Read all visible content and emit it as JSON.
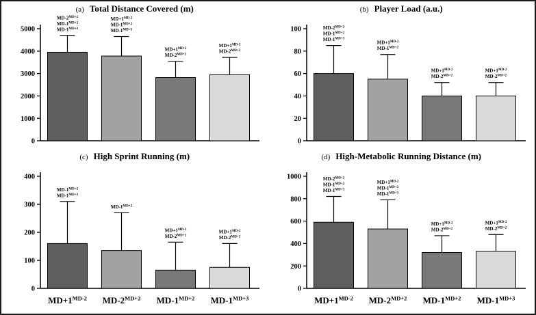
{
  "figure": {
    "background": "#ffffff",
    "border_color": "#1b1b1b",
    "axis_color": "#000000",
    "bar_colors": [
      "#5e5e5e",
      "#a2a2a2",
      "#787878",
      "#d9d9d9"
    ],
    "x_labels": [
      {
        "base": "MD+1",
        "sup": "MD-2"
      },
      {
        "base": "MD-2",
        "sup": "MD+2"
      },
      {
        "base": "MD-1",
        "sup": "MD+2"
      },
      {
        "base": "MD-1",
        "sup": "MD+3"
      }
    ]
  },
  "chart_data": [
    {
      "id": "a",
      "type": "bar",
      "panel_letter": "(a)",
      "title": "Total Distance Covered (m)",
      "categories": [
        "MD+1^MD-2",
        "MD-2^MD+2",
        "MD-1^MD+2",
        "MD-1^MD+3"
      ],
      "values": [
        3950,
        3780,
        2820,
        2950
      ],
      "error_tops": [
        4700,
        4650,
        3550,
        3720
      ],
      "ylim": [
        0,
        5000
      ],
      "yticks": [
        0,
        1000,
        2000,
        3000,
        4000,
        5000
      ],
      "show_x_labels": false,
      "annotations": [
        [
          {
            "base": "MD-2",
            "sup": "MD+2"
          },
          {
            "base": "MD-1",
            "sup": "MD+2"
          },
          {
            "base": "MD-1",
            "sup": "MD+3"
          }
        ],
        [
          {
            "base": "MD+1",
            "sup": "MD-2"
          },
          {
            "base": "MD-1",
            "sup": "MD+2"
          },
          {
            "base": "MD-1",
            "sup": "MD+3"
          }
        ],
        [
          {
            "base": "MD+1",
            "sup": "MD-2"
          },
          {
            "base": "MD-2",
            "sup": "MD+2"
          }
        ],
        [
          {
            "base": "MD+1",
            "sup": "MD-2"
          },
          {
            "base": "MD-2",
            "sup": "MD+2"
          }
        ]
      ]
    },
    {
      "id": "b",
      "type": "bar",
      "panel_letter": "(b)",
      "title": "Player Load (a.u.)",
      "categories": [
        "MD+1^MD-2",
        "MD-2^MD+2",
        "MD-1^MD+2",
        "MD-1^MD+3"
      ],
      "values": [
        60,
        55,
        40,
        40
      ],
      "error_tops": [
        85,
        77,
        52,
        52
      ],
      "ylim": [
        0,
        100
      ],
      "yticks": [
        0,
        20,
        40,
        60,
        80,
        100
      ],
      "show_x_labels": false,
      "annotations": [
        [
          {
            "base": "MD-2",
            "sup": "MD+2"
          },
          {
            "base": "MD-1",
            "sup": "MD+2"
          },
          {
            "base": "MD-1",
            "sup": "MD+3"
          }
        ],
        [
          {
            "base": "MD+1",
            "sup": "MD-2"
          },
          {
            "base": "MD-1",
            "sup": "MD+2"
          }
        ],
        [
          {
            "base": "MD+1",
            "sup": "MD-2"
          },
          {
            "base": "MD-2",
            "sup": "MD+2"
          }
        ],
        [
          {
            "base": "MD+1",
            "sup": "MD-2"
          },
          {
            "base": "MD-2",
            "sup": "MD+2"
          }
        ]
      ]
    },
    {
      "id": "c",
      "type": "bar",
      "panel_letter": "(c)",
      "title": "High Sprint Running (m)",
      "categories": [
        "MD+1^MD-2",
        "MD-2^MD+2",
        "MD-1^MD+2",
        "MD-1^MD+3"
      ],
      "values": [
        160,
        135,
        65,
        75
      ],
      "error_tops": [
        310,
        270,
        165,
        160
      ],
      "ylim": [
        0,
        400
      ],
      "yticks": [
        0,
        100,
        200,
        300,
        400
      ],
      "show_x_labels": true,
      "annotations": [
        [
          {
            "base": "MD-1",
            "sup": "MD+2"
          },
          {
            "base": "MD-1",
            "sup": "MD+3"
          }
        ],
        [
          {
            "base": "MD-1",
            "sup": "MD+2"
          }
        ],
        [
          {
            "base": "MD+1",
            "sup": "MD-2"
          },
          {
            "base": "MD-2",
            "sup": "MD+2"
          }
        ],
        [
          {
            "base": "MD+1",
            "sup": "MD-2"
          },
          {
            "base": "MD-2",
            "sup": "MD+2"
          }
        ]
      ]
    },
    {
      "id": "d",
      "type": "bar",
      "panel_letter": "(d)",
      "title": "High-Metabolic Running Distance (m)",
      "categories": [
        "MD+1^MD-2",
        "MD-2^MD+2",
        "MD-1^MD+2",
        "MD-1^MD+3"
      ],
      "values": [
        590,
        530,
        320,
        330
      ],
      "error_tops": [
        820,
        790,
        470,
        480
      ],
      "ylim": [
        0,
        1000
      ],
      "yticks": [
        0,
        200,
        400,
        600,
        800,
        1000
      ],
      "show_x_labels": true,
      "annotations": [
        [
          {
            "base": "MD-2",
            "sup": "MD+2"
          },
          {
            "base": "MD-1",
            "sup": "MD+2"
          },
          {
            "base": "MD-1",
            "sup": "MD+3"
          }
        ],
        [
          {
            "base": "MD+1",
            "sup": "MD-2"
          },
          {
            "base": "MD-1",
            "sup": "MD+2"
          },
          {
            "base": "MD-1",
            "sup": "MD+3"
          }
        ],
        [
          {
            "base": "MD+1",
            "sup": "MD-2"
          },
          {
            "base": "MD-2",
            "sup": "MD+2"
          }
        ],
        [
          {
            "base": "MD+1",
            "sup": "MD-2"
          },
          {
            "base": "MD-2",
            "sup": "MD+2"
          }
        ]
      ]
    }
  ]
}
